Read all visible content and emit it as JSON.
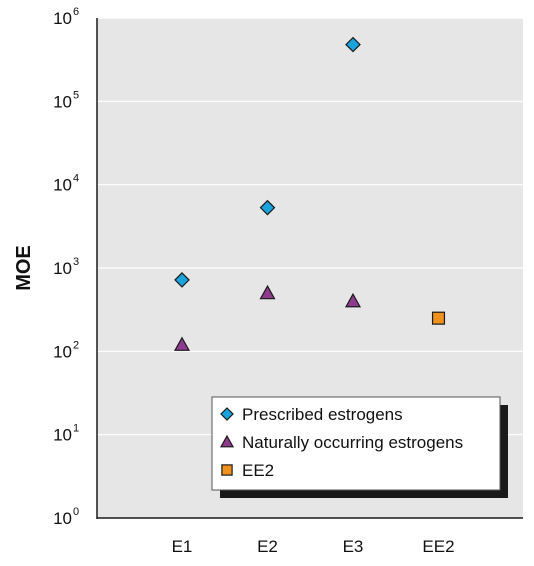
{
  "chart_data": {
    "type": "scatter",
    "title": "",
    "xlabel": "",
    "ylabel": "MOE",
    "y_scale": "log",
    "ylim": [
      1,
      1000000
    ],
    "y_ticks": [
      {
        "base": "10",
        "exp": "0",
        "value": 1
      },
      {
        "base": "10",
        "exp": "1",
        "value": 10
      },
      {
        "base": "10",
        "exp": "2",
        "value": 100
      },
      {
        "base": "10",
        "exp": "3",
        "value": 1000
      },
      {
        "base": "10",
        "exp": "4",
        "value": 10000
      },
      {
        "base": "10",
        "exp": "5",
        "value": 100000
      },
      {
        "base": "10",
        "exp": "6",
        "value": 1000000
      }
    ],
    "categories": [
      "E1",
      "E2",
      "E3",
      "EE2"
    ],
    "grid": "horizontal",
    "legend_position": "bottom-right",
    "series": [
      {
        "name": "Prescribed estrogens",
        "marker": "diamond",
        "color": "#1aa3dc",
        "points": [
          {
            "x": "E1",
            "y": 720
          },
          {
            "x": "E2",
            "y": 5300
          },
          {
            "x": "E3",
            "y": 480000
          }
        ]
      },
      {
        "name": "Naturally occurring estrogens",
        "marker": "triangle",
        "color": "#8e3b8e",
        "points": [
          {
            "x": "E1",
            "y": 120
          },
          {
            "x": "E2",
            "y": 500
          },
          {
            "x": "E3",
            "y": 400
          }
        ]
      },
      {
        "name": "EE2",
        "marker": "square",
        "color": "#f0911e",
        "points": [
          {
            "x": "EE2",
            "y": 250
          }
        ]
      }
    ]
  },
  "colors": {
    "plot_background": "#e6e6e6",
    "gridline": "#ffffff",
    "axis": "#1a1a1a",
    "marker_stroke": "#1a1a1a",
    "legend_shadow": "#1a1a1a"
  }
}
